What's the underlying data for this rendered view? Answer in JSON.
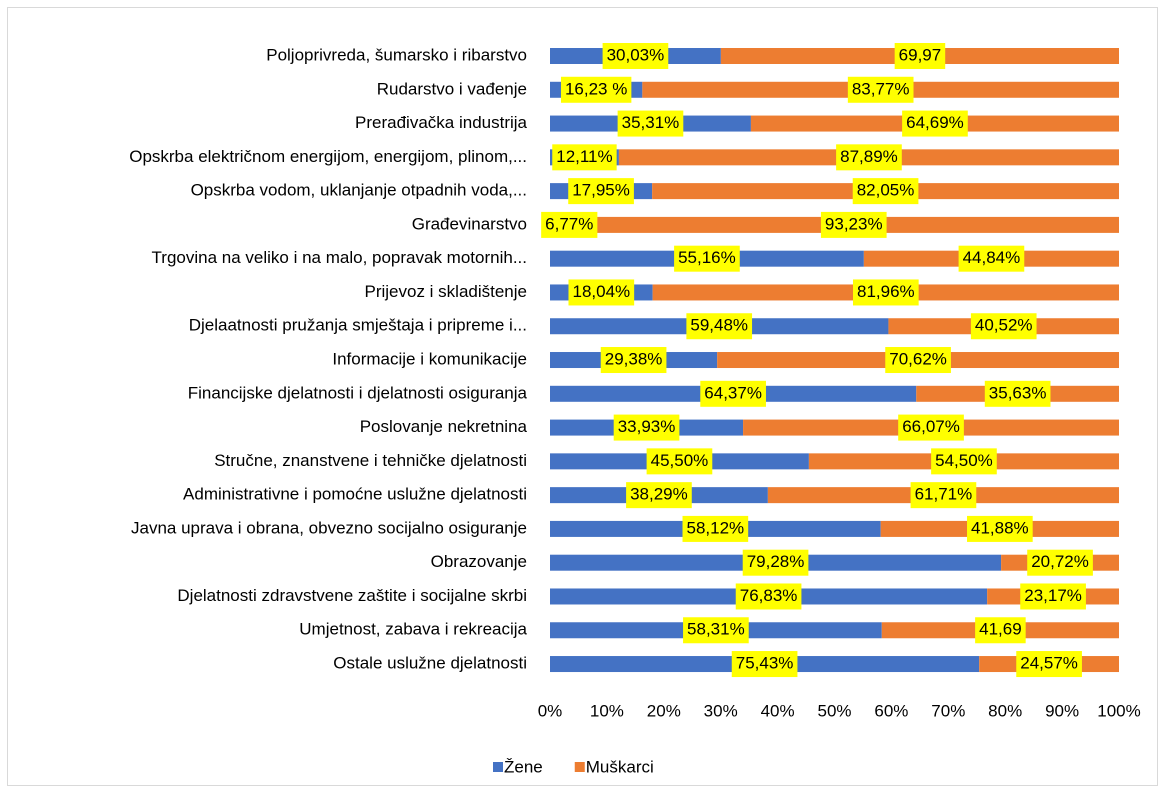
{
  "chart_data": {
    "type": "stacked_barh",
    "categories": [
      "Poljoprivreda, šumarsko i ribarstvo",
      "Rudarstvo i vađenje",
      "Prerađivačka industrija",
      "Opskrba električnom energijom, energijom, plinom,...",
      "Opskrba vodom, uklanjanje otpadnih voda,...",
      "Građevinarstvo",
      "Trgovina na veliko i na malo, popravak motornih...",
      "Prijevoz i skladištenje",
      "Djelaatnosti pružanja smještaja i pripreme i...",
      "Informacije i komunikacije",
      "Financijske djelatnosti i djelatnosti osiguranja",
      "Poslovanje nekretnina",
      "Stručne, znanstvene i tehničke djelatnosti",
      "Administrativne i pomoćne uslužne djelatnosti",
      "Javna uprava i obrana, obvezno socijalno osiguranje",
      "Obrazovanje",
      "Djelatnosti zdravstvene zaštite i socijalne skrbi",
      "Umjetnost, zabava i rekreacija",
      "Ostale uslužne djelatnosti"
    ],
    "series": [
      {
        "name": "Žene",
        "color": "#4472c4",
        "values": [
          30.03,
          16.23,
          35.31,
          12.11,
          17.95,
          6.77,
          55.16,
          18.04,
          59.48,
          29.38,
          64.37,
          33.93,
          45.5,
          38.29,
          58.12,
          79.28,
          76.83,
          58.31,
          75.43
        ],
        "value_labels": [
          "30,03%",
          "16,23 %",
          "35,31%",
          "12,11%",
          "17,95%",
          "6,77%",
          "55,16%",
          "18,04%",
          "59,48%",
          "29,38%",
          "64,37%",
          "33,93%",
          "45,50%",
          "38,29%",
          "58,12%",
          "79,28%",
          "76,83%",
          "58,31%",
          "75,43%"
        ]
      },
      {
        "name": "Muškarci",
        "color": "#ed7d31",
        "values": [
          69.97,
          83.77,
          64.69,
          87.89,
          82.05,
          93.23,
          44.84,
          81.96,
          40.52,
          70.62,
          35.63,
          66.07,
          54.5,
          61.71,
          41.88,
          20.72,
          23.17,
          41.69,
          24.57
        ],
        "value_labels": [
          "69,97",
          "83,77%",
          "64,69%",
          "87,89%",
          "82,05%",
          "93,23%",
          "44,84%",
          "81,96%",
          "40,52%",
          "70,62%",
          "35,63%",
          "66,07%",
          "54,50%",
          "61,71%",
          "41,88%",
          "20,72%",
          "23,17%",
          "41,69",
          "24,57%"
        ]
      }
    ],
    "xlim": [
      0,
      100
    ],
    "xticks": [
      {
        "value": 0,
        "label": "0%"
      },
      {
        "value": 10,
        "label": "10%"
      },
      {
        "value": 20,
        "label": "20%"
      },
      {
        "value": 30,
        "label": "30%"
      },
      {
        "value": 40,
        "label": "40%"
      },
      {
        "value": 50,
        "label": "50%"
      },
      {
        "value": 60,
        "label": "60%"
      },
      {
        "value": 70,
        "label": "70%"
      },
      {
        "value": 80,
        "label": "80%"
      },
      {
        "value": 90,
        "label": "90%"
      },
      {
        "value": 100,
        "label": "100%"
      }
    ],
    "label_background": "#ffff00",
    "legend": "bottom"
  }
}
